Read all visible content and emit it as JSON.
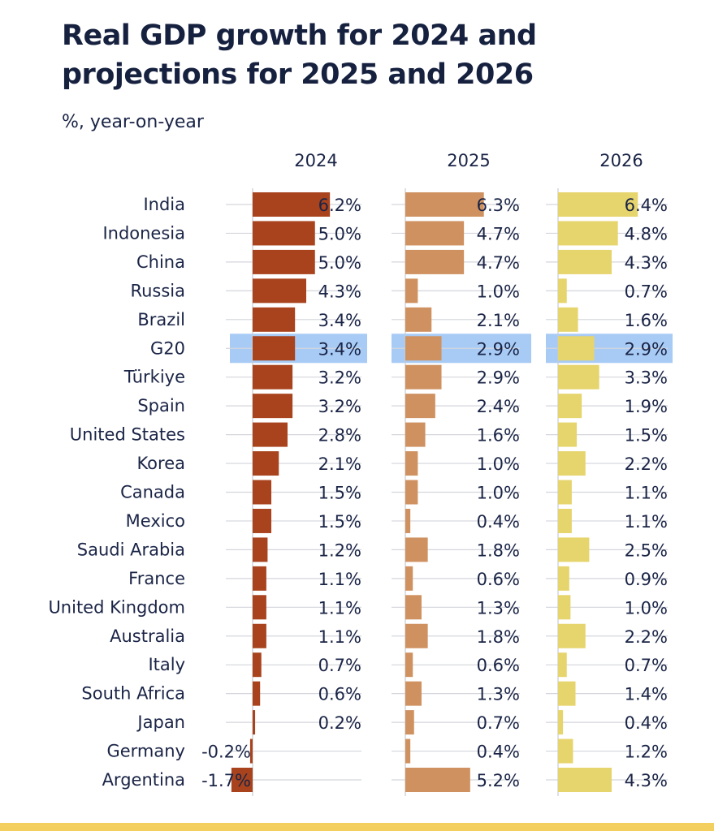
{
  "chart_data": {
    "type": "bar",
    "orientation": "horizontal",
    "title": "Real GDP growth for 2024 and projections for 2025 and 2026",
    "subtitle": "%, year-on-year",
    "xlabel": "",
    "ylabel": "",
    "unit": "%",
    "grid": true,
    "highlighted_category": "G20",
    "categories": [
      "India",
      "Indonesia",
      "China",
      "Russia",
      "Brazil",
      "G20",
      "Türkiye",
      "Spain",
      "United States",
      "Korea",
      "Canada",
      "Mexico",
      "Saudi Arabia",
      "France",
      "United Kingdom",
      "Australia",
      "Italy",
      "South Africa",
      "Japan",
      "Germany",
      "Argentina"
    ],
    "series": [
      {
        "name": "2024",
        "color": "#a8431d",
        "values": [
          6.2,
          5.0,
          5.0,
          4.3,
          3.4,
          3.4,
          3.2,
          3.2,
          2.8,
          2.1,
          1.5,
          1.5,
          1.2,
          1.1,
          1.1,
          1.1,
          0.7,
          0.6,
          0.2,
          -0.2,
          -1.7
        ]
      },
      {
        "name": "2025",
        "color": "#cf9160",
        "values": [
          6.3,
          4.7,
          4.7,
          1.0,
          2.1,
          2.9,
          2.9,
          2.4,
          1.6,
          1.0,
          1.0,
          0.4,
          1.8,
          0.6,
          1.3,
          1.8,
          0.6,
          1.3,
          0.7,
          0.4,
          5.2
        ]
      },
      {
        "name": "2026",
        "color": "#e6d46c",
        "values": [
          6.4,
          4.8,
          4.3,
          0.7,
          1.6,
          2.9,
          3.3,
          1.9,
          1.5,
          2.2,
          1.1,
          1.1,
          2.5,
          0.9,
          1.0,
          2.2,
          0.7,
          1.4,
          0.4,
          1.2,
          4.3
        ]
      }
    ],
    "labels": [
      [
        "6.2%",
        "5.0%",
        "5.0%",
        "4.3%",
        "3.4%",
        "3.4%",
        "3.2%",
        "3.2%",
        "2.8%",
        "2.1%",
        "1.5%",
        "1.5%",
        "1.2%",
        "1.1%",
        "1.1%",
        "1.1%",
        "0.7%",
        "0.6%",
        "0.2%",
        "-0.2%",
        "-1.7%"
      ],
      [
        "6.3%",
        "4.7%",
        "4.7%",
        "1.0%",
        "2.1%",
        "2.9%",
        "2.9%",
        "2.4%",
        "1.6%",
        "1.0%",
        "1.0%",
        "0.4%",
        "1.8%",
        "0.6%",
        "1.3%",
        "1.8%",
        "0.6%",
        "1.3%",
        "0.7%",
        "0.4%",
        "5.2%"
      ],
      [
        "6.4%",
        "4.8%",
        "4.3%",
        "0.7%",
        "1.6%",
        "2.9%",
        "3.3%",
        "1.9%",
        "1.5%",
        "2.2%",
        "1.1%",
        "1.1%",
        "2.5%",
        "0.9%",
        "1.0%",
        "2.2%",
        "0.7%",
        "1.4%",
        "0.4%",
        "1.2%",
        "4.3%"
      ]
    ],
    "highlight_color": "#a7cbf5",
    "text_color": "#1a2446",
    "gridline_color": "#d4d6dc",
    "accent_footer_color": "#f3cf5f"
  }
}
